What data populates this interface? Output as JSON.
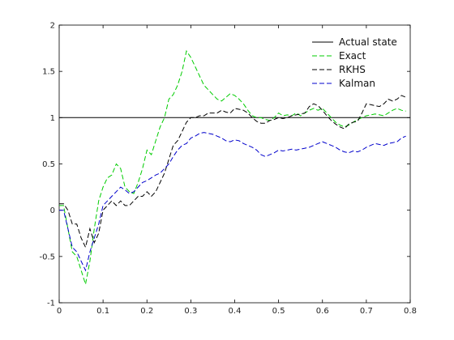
{
  "chart_data": {
    "type": "line",
    "xlim": [
      0,
      0.8
    ],
    "ylim": [
      -1,
      2
    ],
    "xticks": [
      "0",
      "0.1",
      "0.2",
      "0.3",
      "0.4",
      "0.5",
      "0.6",
      "0.7",
      "0.8"
    ],
    "yticks": [
      "-1",
      "-0.5",
      "0",
      "0.5",
      "1",
      "1.5",
      "2"
    ],
    "grid": false,
    "legend_position": "top-right",
    "series": [
      {
        "name": "Actual state",
        "color": "#000000",
        "dash": "solid",
        "x": [
          0,
          0.8
        ],
        "y": [
          1,
          1
        ]
      },
      {
        "name": "Exact",
        "color": "#00cc00",
        "dash": "dashed",
        "x": [
          0,
          0.01,
          0.02,
          0.03,
          0.04,
          0.05,
          0.06,
          0.07,
          0.08,
          0.09,
          0.1,
          0.11,
          0.12,
          0.13,
          0.14,
          0.15,
          0.16,
          0.17,
          0.18,
          0.19,
          0.2,
          0.21,
          0.22,
          0.23,
          0.24,
          0.25,
          0.26,
          0.27,
          0.28,
          0.29,
          0.3,
          0.31,
          0.32,
          0.33,
          0.34,
          0.35,
          0.36,
          0.37,
          0.38,
          0.39,
          0.4,
          0.41,
          0.42,
          0.43,
          0.44,
          0.45,
          0.46,
          0.47,
          0.48,
          0.49,
          0.5,
          0.51,
          0.52,
          0.53,
          0.54,
          0.55,
          0.56,
          0.57,
          0.58,
          0.59,
          0.6,
          0.61,
          0.62,
          0.63,
          0.64,
          0.65,
          0.66,
          0.67,
          0.68,
          0.69,
          0.7,
          0.71,
          0.72,
          0.73,
          0.74,
          0.75,
          0.76,
          0.77,
          0.78,
          0.79
        ],
        "y": [
          0.05,
          0.05,
          -0.2,
          -0.45,
          -0.5,
          -0.65,
          -0.8,
          -0.55,
          -0.2,
          0.1,
          0.25,
          0.35,
          0.38,
          0.5,
          0.45,
          0.25,
          0.2,
          0.18,
          0.3,
          0.45,
          0.65,
          0.6,
          0.75,
          0.9,
          1.0,
          1.2,
          1.25,
          1.35,
          1.5,
          1.72,
          1.65,
          1.55,
          1.45,
          1.35,
          1.3,
          1.25,
          1.2,
          1.18,
          1.22,
          1.26,
          1.24,
          1.2,
          1.15,
          1.08,
          1.02,
          1.0,
          1.0,
          0.98,
          0.97,
          1.0,
          1.05,
          1.02,
          1.03,
          1.02,
          1.05,
          1.02,
          1.05,
          1.08,
          1.1,
          1.08,
          1.1,
          1.05,
          1.0,
          0.95,
          0.92,
          0.9,
          0.92,
          0.95,
          0.98,
          1.0,
          1.02,
          1.03,
          1.04,
          1.03,
          1.02,
          1.05,
          1.08,
          1.1,
          1.08,
          1.07
        ]
      },
      {
        "name": "RKHS",
        "color": "#000000",
        "dash": "dashed",
        "x": [
          0,
          0.01,
          0.02,
          0.03,
          0.04,
          0.05,
          0.06,
          0.07,
          0.08,
          0.09,
          0.1,
          0.11,
          0.12,
          0.13,
          0.14,
          0.15,
          0.16,
          0.17,
          0.18,
          0.19,
          0.2,
          0.21,
          0.22,
          0.23,
          0.24,
          0.25,
          0.26,
          0.27,
          0.28,
          0.29,
          0.3,
          0.31,
          0.32,
          0.33,
          0.34,
          0.35,
          0.36,
          0.37,
          0.38,
          0.39,
          0.4,
          0.41,
          0.42,
          0.43,
          0.44,
          0.45,
          0.46,
          0.47,
          0.48,
          0.49,
          0.5,
          0.51,
          0.52,
          0.53,
          0.54,
          0.55,
          0.56,
          0.57,
          0.58,
          0.59,
          0.6,
          0.61,
          0.62,
          0.63,
          0.64,
          0.65,
          0.66,
          0.67,
          0.68,
          0.69,
          0.7,
          0.71,
          0.72,
          0.73,
          0.74,
          0.75,
          0.76,
          0.77,
          0.78,
          0.79
        ],
        "y": [
          0.07,
          0.07,
          0.0,
          -0.15,
          -0.15,
          -0.3,
          -0.4,
          -0.2,
          -0.35,
          -0.25,
          0.0,
          0.05,
          0.1,
          0.05,
          0.1,
          0.05,
          0.05,
          0.1,
          0.15,
          0.15,
          0.2,
          0.15,
          0.2,
          0.3,
          0.4,
          0.55,
          0.7,
          0.75,
          0.85,
          0.95,
          1.0,
          1.0,
          1.02,
          1.02,
          1.05,
          1.05,
          1.05,
          1.08,
          1.06,
          1.05,
          1.1,
          1.09,
          1.08,
          1.05,
          1.0,
          0.96,
          0.94,
          0.94,
          0.97,
          0.98,
          1.0,
          0.99,
          1.0,
          1.02,
          1.03,
          1.04,
          1.05,
          1.12,
          1.15,
          1.13,
          1.08,
          1.02,
          0.97,
          0.93,
          0.9,
          0.88,
          0.93,
          0.95,
          0.96,
          1.05,
          1.15,
          1.14,
          1.13,
          1.12,
          1.15,
          1.2,
          1.18,
          1.2,
          1.24,
          1.22
        ]
      },
      {
        "name": "Kalman",
        "color": "#0000cc",
        "dash": "dashed",
        "x": [
          0,
          0.01,
          0.02,
          0.03,
          0.04,
          0.05,
          0.06,
          0.07,
          0.08,
          0.09,
          0.1,
          0.11,
          0.12,
          0.13,
          0.14,
          0.15,
          0.16,
          0.17,
          0.18,
          0.19,
          0.2,
          0.21,
          0.22,
          0.23,
          0.24,
          0.25,
          0.26,
          0.27,
          0.28,
          0.29,
          0.3,
          0.31,
          0.32,
          0.33,
          0.34,
          0.35,
          0.36,
          0.37,
          0.38,
          0.39,
          0.4,
          0.41,
          0.42,
          0.43,
          0.44,
          0.45,
          0.46,
          0.47,
          0.48,
          0.49,
          0.5,
          0.51,
          0.52,
          0.53,
          0.54,
          0.55,
          0.56,
          0.57,
          0.58,
          0.59,
          0.6,
          0.61,
          0.62,
          0.63,
          0.64,
          0.65,
          0.66,
          0.67,
          0.68,
          0.69,
          0.7,
          0.71,
          0.72,
          0.73,
          0.74,
          0.75,
          0.76,
          0.77,
          0.78,
          0.79
        ],
        "y": [
          0.0,
          0.0,
          -0.2,
          -0.4,
          -0.45,
          -0.55,
          -0.65,
          -0.45,
          -0.3,
          -0.15,
          0.05,
          0.1,
          0.15,
          0.2,
          0.25,
          0.22,
          0.18,
          0.2,
          0.25,
          0.3,
          0.32,
          0.35,
          0.38,
          0.4,
          0.45,
          0.5,
          0.58,
          0.65,
          0.7,
          0.72,
          0.78,
          0.8,
          0.83,
          0.84,
          0.83,
          0.82,
          0.8,
          0.78,
          0.75,
          0.74,
          0.76,
          0.75,
          0.72,
          0.7,
          0.68,
          0.65,
          0.6,
          0.58,
          0.6,
          0.62,
          0.65,
          0.64,
          0.65,
          0.66,
          0.65,
          0.66,
          0.67,
          0.68,
          0.7,
          0.72,
          0.74,
          0.72,
          0.7,
          0.68,
          0.65,
          0.63,
          0.62,
          0.64,
          0.63,
          0.65,
          0.68,
          0.7,
          0.72,
          0.71,
          0.7,
          0.72,
          0.73,
          0.74,
          0.78,
          0.8
        ]
      }
    ]
  }
}
